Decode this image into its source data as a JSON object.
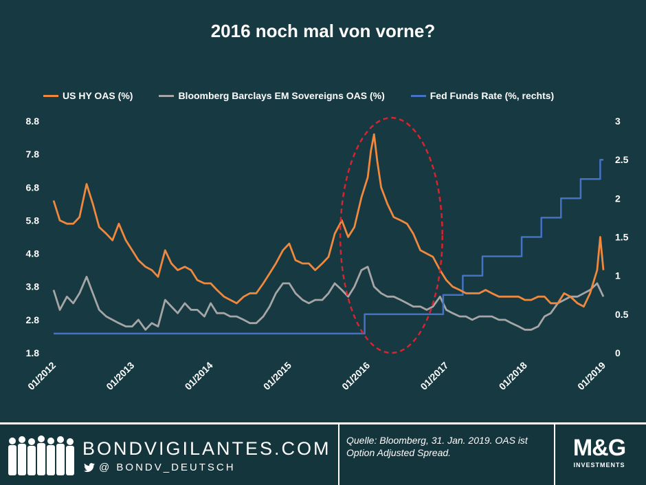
{
  "title": "2016 noch mal von vorne?",
  "footer": {
    "brand": "BONDVIGILANTES.COM",
    "twitter_handle": "@ BONDV_DEUTSCH",
    "source_note": "Quelle: Bloomberg, 31. Jan. 2019. OAS ist Option Adjusted Spread.",
    "logo_mark": "M&G",
    "logo_sub": "INVESTMENTS"
  },
  "colors": {
    "background": "#173a42",
    "us_hy": "#f0883e",
    "em_sov": "#a6a6a6",
    "fed_funds": "#4472c4",
    "highlight_ellipse": "#d9232e"
  },
  "chart_data": {
    "type": "line",
    "title": "2016 noch mal von vorne?",
    "x_tick_labels": [
      "01/2012",
      "01/2013",
      "01/2014",
      "01/2015",
      "01/2016",
      "01/2017",
      "01/2018",
      "01/2019"
    ],
    "x_range": [
      2012.0,
      2019.0
    ],
    "y_left": {
      "range": [
        1.8,
        8.8
      ],
      "tick_labels": [
        "1.8",
        "2.8",
        "3.8",
        "4.8",
        "5.8",
        "6.8",
        "7.8",
        "8.8"
      ]
    },
    "y_right": {
      "range": [
        0,
        3
      ],
      "tick_labels": [
        "0",
        "0.5",
        "1",
        "1.5",
        "2",
        "2.5",
        "3"
      ]
    },
    "legend": {
      "position": "top"
    },
    "highlight": {
      "type": "ellipse",
      "x_range": [
        2015.65,
        2016.95
      ],
      "y_range": [
        1.8,
        8.9
      ],
      "style": "dashed"
    },
    "series": [
      {
        "name": "US HY OAS (%)",
        "axis": "left",
        "x": [
          2012.0,
          2012.08,
          2012.17,
          2012.25,
          2012.33,
          2012.42,
          2012.5,
          2012.58,
          2012.67,
          2012.75,
          2012.83,
          2012.92,
          2013.0,
          2013.08,
          2013.17,
          2013.25,
          2013.33,
          2013.42,
          2013.5,
          2013.58,
          2013.67,
          2013.75,
          2013.83,
          2013.92,
          2014.0,
          2014.08,
          2014.17,
          2014.25,
          2014.33,
          2014.42,
          2014.5,
          2014.58,
          2014.67,
          2014.75,
          2014.83,
          2014.92,
          2015.0,
          2015.08,
          2015.17,
          2015.25,
          2015.33,
          2015.42,
          2015.5,
          2015.58,
          2015.67,
          2015.75,
          2015.83,
          2015.92,
          2016.0,
          2016.04,
          2016.08,
          2016.12,
          2016.17,
          2016.25,
          2016.33,
          2016.42,
          2016.5,
          2016.58,
          2016.67,
          2016.75,
          2016.83,
          2016.92,
          2017.0,
          2017.08,
          2017.17,
          2017.25,
          2017.33,
          2017.42,
          2017.5,
          2017.58,
          2017.67,
          2017.75,
          2017.83,
          2017.92,
          2018.0,
          2018.08,
          2018.17,
          2018.25,
          2018.33,
          2018.42,
          2018.5,
          2018.58,
          2018.67,
          2018.75,
          2018.83,
          2018.92,
          2018.96,
          2019.0
        ],
        "values": [
          6.4,
          5.8,
          5.7,
          5.7,
          5.9,
          6.9,
          6.3,
          5.6,
          5.4,
          5.2,
          5.7,
          5.2,
          4.9,
          4.6,
          4.4,
          4.3,
          4.1,
          4.9,
          4.5,
          4.3,
          4.4,
          4.3,
          4.0,
          3.9,
          3.9,
          3.7,
          3.5,
          3.4,
          3.3,
          3.5,
          3.6,
          3.6,
          3.9,
          4.2,
          4.5,
          4.9,
          5.1,
          4.6,
          4.5,
          4.5,
          4.3,
          4.5,
          4.7,
          5.4,
          5.8,
          5.3,
          5.6,
          6.5,
          7.1,
          7.9,
          8.4,
          7.6,
          6.8,
          6.3,
          5.9,
          5.8,
          5.7,
          5.4,
          4.9,
          4.8,
          4.7,
          4.3,
          4.0,
          3.8,
          3.7,
          3.6,
          3.6,
          3.6,
          3.7,
          3.6,
          3.5,
          3.5,
          3.5,
          3.5,
          3.4,
          3.4,
          3.5,
          3.5,
          3.3,
          3.3,
          3.6,
          3.5,
          3.3,
          3.2,
          3.6,
          4.3,
          5.3,
          4.3
        ]
      },
      {
        "name": "Bloomberg Barclays EM Sovereigns OAS (%)",
        "axis": "left",
        "x": [
          2012.0,
          2012.08,
          2012.17,
          2012.25,
          2012.33,
          2012.42,
          2012.5,
          2012.58,
          2012.67,
          2012.75,
          2012.83,
          2012.92,
          2013.0,
          2013.08,
          2013.17,
          2013.25,
          2013.33,
          2013.42,
          2013.5,
          2013.58,
          2013.67,
          2013.75,
          2013.83,
          2013.92,
          2014.0,
          2014.08,
          2014.17,
          2014.25,
          2014.33,
          2014.42,
          2014.5,
          2014.58,
          2014.67,
          2014.75,
          2014.83,
          2014.92,
          2015.0,
          2015.08,
          2015.17,
          2015.25,
          2015.33,
          2015.42,
          2015.5,
          2015.58,
          2015.67,
          2015.75,
          2015.83,
          2015.92,
          2016.0,
          2016.08,
          2016.17,
          2016.25,
          2016.33,
          2016.42,
          2016.5,
          2016.58,
          2016.67,
          2016.75,
          2016.83,
          2016.92,
          2017.0,
          2017.08,
          2017.17,
          2017.25,
          2017.33,
          2017.42,
          2017.5,
          2017.58,
          2017.67,
          2017.75,
          2017.83,
          2017.92,
          2018.0,
          2018.08,
          2018.17,
          2018.25,
          2018.33,
          2018.42,
          2018.5,
          2018.58,
          2018.67,
          2018.75,
          2018.83,
          2018.92,
          2019.0
        ],
        "values": [
          3.7,
          3.1,
          3.5,
          3.3,
          3.6,
          4.1,
          3.6,
          3.1,
          2.9,
          2.8,
          2.7,
          2.6,
          2.6,
          2.8,
          2.5,
          2.7,
          2.6,
          3.4,
          3.2,
          3.0,
          3.3,
          3.1,
          3.1,
          2.9,
          3.3,
          3.0,
          3.0,
          2.9,
          2.9,
          2.8,
          2.7,
          2.7,
          2.9,
          3.2,
          3.6,
          3.9,
          3.9,
          3.6,
          3.4,
          3.3,
          3.4,
          3.4,
          3.6,
          3.9,
          3.7,
          3.5,
          3.8,
          4.3,
          4.4,
          3.8,
          3.6,
          3.5,
          3.5,
          3.4,
          3.3,
          3.2,
          3.2,
          3.1,
          3.2,
          3.5,
          3.1,
          3.0,
          2.9,
          2.9,
          2.8,
          2.9,
          2.9,
          2.9,
          2.8,
          2.8,
          2.7,
          2.6,
          2.5,
          2.5,
          2.6,
          2.9,
          3.0,
          3.3,
          3.4,
          3.5,
          3.5,
          3.6,
          3.7,
          3.9,
          3.5
        ]
      },
      {
        "name": "Fed Funds Rate (%, rechts)",
        "axis": "right",
        "step": true,
        "x": [
          2012.0,
          2015.96,
          2016.96,
          2017.21,
          2017.46,
          2017.96,
          2018.21,
          2018.46,
          2018.71,
          2018.96,
          2019.0
        ],
        "values": [
          0.25,
          0.5,
          0.75,
          1.0,
          1.25,
          1.5,
          1.75,
          2.0,
          2.25,
          2.5,
          2.5
        ]
      }
    ]
  }
}
